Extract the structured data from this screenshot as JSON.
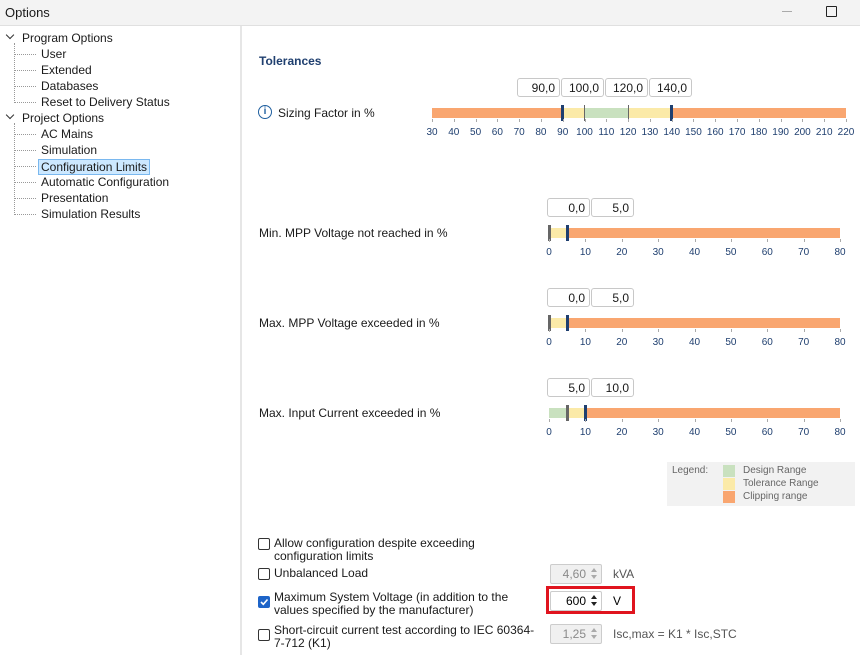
{
  "window": {
    "title": "Options"
  },
  "tree": [
    {
      "label": "Program Options",
      "children": [
        {
          "label": "User"
        },
        {
          "label": "Extended"
        },
        {
          "label": "Databases"
        },
        {
          "label": "Reset to Delivery Status"
        }
      ]
    },
    {
      "label": "Project Options",
      "children": [
        {
          "label": "AC Mains"
        },
        {
          "label": "Simulation"
        },
        {
          "label": "Configuration Limits",
          "selected": true
        },
        {
          "label": "Automatic Configuration"
        },
        {
          "label": "Presentation"
        },
        {
          "label": "Simulation Results"
        }
      ]
    }
  ],
  "section_title": "Tolerances",
  "tolerances": [
    {
      "label": "Sizing Factor in %",
      "info": true,
      "thresholds": [
        {
          "value": 90,
          "label": "90,0"
        },
        {
          "value": 100,
          "label": "100,0"
        },
        {
          "value": 120,
          "label": "120,0"
        },
        {
          "value": 140,
          "label": "140,0"
        }
      ],
      "zones": [
        "#f9a670",
        "#fbeaa8",
        "#c9e1bf",
        "#fbeaa8",
        "#f9a670"
      ],
      "marker_colors": [
        "#1f3f6f",
        "#666666",
        "#666666",
        "#1f3f6f"
      ],
      "xlim": [
        30,
        220
      ],
      "xticks": [
        30,
        40,
        50,
        60,
        70,
        80,
        90,
        100,
        110,
        120,
        130,
        140,
        150,
        160,
        170,
        180,
        190,
        200,
        210,
        220
      ]
    },
    {
      "label": "Min. MPP Voltage not reached in %",
      "info": false,
      "thresholds": [
        {
          "value": 0,
          "label": "0,0"
        },
        {
          "value": 5,
          "label": "5,0"
        }
      ],
      "zones": [
        "#c9e1bf",
        "#fbeaa8",
        "#f9a670"
      ],
      "marker_colors": [
        "#666666",
        "#1f3f6f"
      ],
      "xlim": [
        0,
        80
      ],
      "xticks": [
        0,
        10,
        20,
        30,
        40,
        50,
        60,
        70,
        80
      ]
    },
    {
      "label": "Max. MPP Voltage exceeded in %",
      "info": false,
      "thresholds": [
        {
          "value": 0,
          "label": "0,0"
        },
        {
          "value": 5,
          "label": "5,0"
        }
      ],
      "zones": [
        "#c9e1bf",
        "#fbeaa8",
        "#f9a670"
      ],
      "marker_colors": [
        "#666666",
        "#1f3f6f"
      ],
      "xlim": [
        0,
        80
      ],
      "xticks": [
        0,
        10,
        20,
        30,
        40,
        50,
        60,
        70,
        80
      ]
    },
    {
      "label": "Max. Input Current exceeded in %",
      "info": false,
      "thresholds": [
        {
          "value": 5,
          "label": "5,0"
        },
        {
          "value": 10,
          "label": "10,0"
        }
      ],
      "zones": [
        "#c9e1bf",
        "#fbeaa8",
        "#f9a670"
      ],
      "marker_colors": [
        "#666666",
        "#1f3f6f"
      ],
      "xlim": [
        0,
        80
      ],
      "xticks": [
        0,
        10,
        20,
        30,
        40,
        50,
        60,
        70,
        80
      ]
    }
  ],
  "legend": {
    "title": "Legend:",
    "items": [
      {
        "label": "Design Range",
        "color": "#c9e1bf"
      },
      {
        "label": "Tolerance Range",
        "color": "#fbeaa8"
      },
      {
        "label": "Clipping range",
        "color": "#f9a670"
      }
    ]
  },
  "options": [
    {
      "label": "Allow configuration despite exceeding configuration limits",
      "checked": false
    },
    {
      "label": "Unbalanced Load",
      "checked": false,
      "field": "4,60",
      "enabled": false,
      "unit": "kVA"
    },
    {
      "label": "Maximum System Voltage (in addition to the values specified by the manufacturer)",
      "checked": true,
      "field": "600",
      "enabled": true,
      "unit": "V",
      "highlighted": true
    },
    {
      "label": "Short-circuit current test according to IEC 60364-7-712 (K1)",
      "checked": false,
      "field": "1,25",
      "enabled": false,
      "unit": "Isc,max = K1 * Isc,STC"
    }
  ]
}
